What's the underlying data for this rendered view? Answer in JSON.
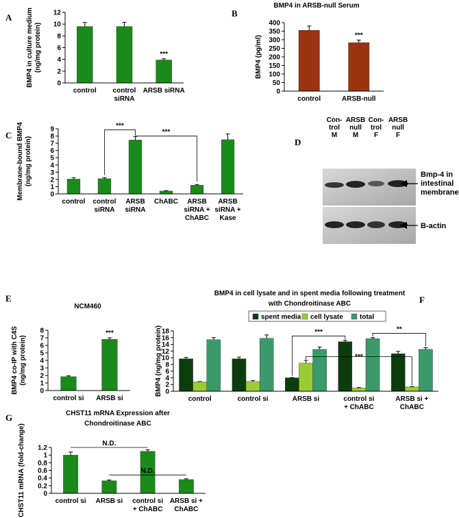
{
  "chart_data": [
    {
      "type": "bar",
      "panel": "A",
      "ylabel": "BMP4 in culture medium\n(ng/mg protein)",
      "categories": [
        "control",
        "control\nsiRNA",
        "ARSB siRNA"
      ],
      "values": [
        9.6,
        9.6,
        3.9
      ],
      "errors": [
        0.7,
        0.7,
        0.2
      ],
      "color": "#1a8a1a",
      "ylim": [
        0,
        12
      ],
      "yticks": [
        0,
        2,
        4,
        6,
        8,
        10,
        12
      ],
      "annotations": [
        "***"
      ]
    },
    {
      "type": "bar",
      "panel": "B",
      "title": "BMP4 in ARSB-null Serum",
      "ylabel": "BMP4 (pg/ml)",
      "categories": [
        "control",
        "ARSB-null"
      ],
      "values": [
        355,
        283
      ],
      "errors": [
        25,
        15
      ],
      "color": "#9b3311",
      "ylim": [
        0,
        400
      ],
      "yticks": [
        0,
        50,
        100,
        150,
        200,
        250,
        300,
        350,
        400
      ],
      "annotations": [
        "***"
      ]
    },
    {
      "type": "bar",
      "panel": "C",
      "ylabel": "Membrane-bound BMP4\n(ng/mg protein)",
      "categories": [
        "control",
        "control\nsiRNA",
        "ARSB\nsiRNA",
        "ChABC",
        "ARSB\nsiRNA +\nChABC",
        "ARSB\nsiRNA +\nKase"
      ],
      "values": [
        2.05,
        2.1,
        7.45,
        0.4,
        1.2,
        7.5
      ],
      "errors": [
        0.2,
        0.15,
        0.5,
        0.05,
        0.1,
        0.8
      ],
      "color": "#1a8a1a",
      "ylim": [
        0,
        9
      ],
      "yticks": [
        0,
        1,
        2,
        3,
        4,
        5,
        6,
        7,
        8,
        9
      ],
      "annotations": [
        "***",
        "***"
      ]
    },
    {
      "type": "bar",
      "panel": "E",
      "title": "NCM460",
      "ylabel": "BMP4 co-IP with C4S\n(ng/mg protein)",
      "categories": [
        "control si",
        "ARSB si"
      ],
      "values": [
        1.85,
        6.8
      ],
      "errors": [
        0.1,
        0.2
      ],
      "color": "#1a8a1a",
      "ylim": [
        0,
        8
      ],
      "yticks": [
        0,
        1,
        2,
        3,
        4,
        5,
        6,
        7,
        8
      ],
      "annotations": [
        "***"
      ]
    },
    {
      "type": "bar",
      "panel": "F",
      "title": "BMP4 in cell lysate and in spent media following treatment\nwith Chondroitinase ABC",
      "ylabel": "BMP4 (ng/mg protein)",
      "categories": [
        "control",
        "control si",
        "ARSB si",
        "control si\n+ ChABC",
        "ARSB si +\nChABC"
      ],
      "series": [
        {
          "name": "spent media",
          "color": "#0d3d0d",
          "values": [
            9.7,
            9.7,
            4.0,
            14.8,
            11.2
          ],
          "errors": [
            0.4,
            0.5,
            0.1,
            0.4,
            0.7
          ]
        },
        {
          "name": "cell lysate",
          "color": "#9acd32",
          "values": [
            2.8,
            2.9,
            8.4,
            1.0,
            1.3
          ],
          "errors": [
            0.1,
            0.3,
            0.8,
            0.1,
            0.1
          ]
        },
        {
          "name": "total",
          "color": "#3a9a6a",
          "values": [
            15.4,
            15.8,
            12.5,
            15.7,
            12.5
          ],
          "errors": [
            0.6,
            1.0,
            0.7,
            0.3,
            0.5
          ]
        }
      ],
      "ylim": [
        0,
        18
      ],
      "yticks": [
        0,
        2,
        4,
        6,
        8,
        10,
        12,
        14,
        16,
        18
      ],
      "annotations": [
        "***",
        "**",
        "***"
      ]
    },
    {
      "type": "bar",
      "panel": "G",
      "title": "CHST11 mRNA Expression after\nChondroitinase ABC",
      "ylabel": "CHST11 mRNA (fold-change)",
      "categories": [
        "control si",
        "ARSB si",
        "control si\n+ ChABC",
        "ARSB si +\nChABC"
      ],
      "values": [
        1.0,
        0.33,
        1.1,
        0.36
      ],
      "errors": [
        0.08,
        0.02,
        0.04,
        0.02
      ],
      "color": "#1a8a1a",
      "ylim": [
        0,
        1.2
      ],
      "yticks": [
        0,
        0.2,
        0.4,
        0.6,
        0.8,
        1,
        1.2
      ],
      "annotations": [
        "N.D.",
        "N.D."
      ]
    }
  ],
  "blot": {
    "panel": "D",
    "lanes": [
      "Con-\ntrol\nM",
      "ARSB\nnull\nM",
      "Con-\ntrol\nF",
      "ARSB\nnull\nF"
    ],
    "bands": [
      "Bmp-4 in\nintestinal\nmembrane",
      "B-actin"
    ]
  }
}
